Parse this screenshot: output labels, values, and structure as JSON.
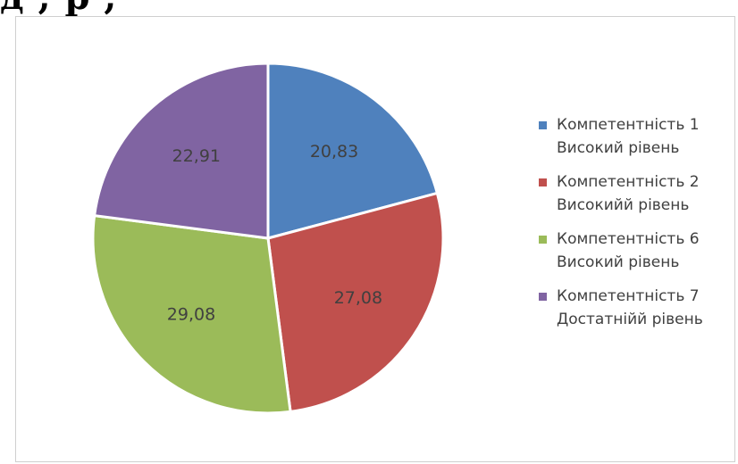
{
  "header_fragment": "д                                ,                 р                   ,",
  "chart_data": {
    "type": "pie",
    "title": "",
    "slices": [
      {
        "label_line1": "Компетентність 1",
        "label_line2": "Високий рівень",
        "value": 20.83,
        "display": "20,83",
        "color": "#4F81BD"
      },
      {
        "label_line1": "Компетентність 2",
        "label_line2": "Високийй рівень",
        "value": 27.08,
        "display": "27,08",
        "color": "#C0504D"
      },
      {
        "label_line1": "Компетентність 6",
        "label_line2": "Високий рівень",
        "value": 29.08,
        "display": "29,08",
        "color": "#9BBB59"
      },
      {
        "label_line1": "Компетентність 7",
        "label_line2": "Достатнійй рівень",
        "value": 22.91,
        "display": "22,91",
        "color": "#8064A2"
      }
    ],
    "start_angle_deg": 0,
    "direction": "clockwise",
    "legend_position": "right"
  }
}
